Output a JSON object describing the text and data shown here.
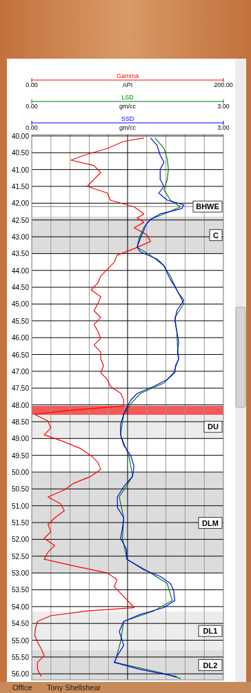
{
  "chart_data": {
    "type": "line",
    "orientation": "horizontal",
    "xlabel": "API",
    "x2label": "gm/cc",
    "legend": "top",
    "xlim": [
      0,
      200
    ],
    "xticks": [
      {
        "value": 0,
        "label": "0.00"
      },
      {
        "value": 20,
        "label": null
      },
      {
        "value": 40,
        "label": null
      },
      {
        "value": 60,
        "label": null
      },
      {
        "value": 80,
        "label": null
      },
      {
        "value": 120,
        "label": null
      },
      {
        "value": 140,
        "label": null
      },
      {
        "value": 160,
        "label": null
      },
      {
        "value": 180,
        "label": null
      },
      {
        "value": 200,
        "label": "200.00"
      }
    ],
    "x2lim": [
      0,
      3
    ],
    "x2ticks": [
      {
        "value": 0,
        "label": "0.00"
      },
      {
        "value": 3,
        "label": "3.00"
      }
    ],
    "ylim": [
      56.18,
      39.96
    ],
    "yticks": [
      {
        "value": 40,
        "label": "40.00"
      },
      {
        "value": 40.5,
        "label": "40.50"
      },
      {
        "value": 41,
        "label": "41.00"
      },
      {
        "value": 41.5,
        "label": "41.50"
      },
      {
        "value": 42,
        "label": "42.00"
      },
      {
        "value": 42.5,
        "label": "42.50"
      },
      {
        "value": 43,
        "label": "43.00"
      },
      {
        "value": 43.5,
        "label": "43.50"
      },
      {
        "value": 44,
        "label": "44.00"
      },
      {
        "value": 44.5,
        "label": "44.50"
      },
      {
        "value": 45,
        "label": "45.00"
      },
      {
        "value": 45.5,
        "label": "45.50"
      },
      {
        "value": 46,
        "label": "46.00"
      },
      {
        "value": 46.5,
        "label": "46.50"
      },
      {
        "value": 47,
        "label": "47.00"
      },
      {
        "value": 47.5,
        "label": "47.50"
      },
      {
        "value": 48,
        "label": "48.00"
      },
      {
        "value": 48.5,
        "label": "48.50"
      },
      {
        "value": 49,
        "label": "49.00"
      },
      {
        "value": 49.5,
        "label": "49.50"
      },
      {
        "value": 50,
        "label": "50.00"
      },
      {
        "value": 50.5,
        "label": "50.50"
      },
      {
        "value": 51,
        "label": "51.00"
      },
      {
        "value": 51.5,
        "label": "51.50"
      },
      {
        "value": 52,
        "label": "52.00"
      },
      {
        "value": 52.5,
        "label": "52.50"
      },
      {
        "value": 53,
        "label": "53.00"
      },
      {
        "value": 53.5,
        "label": "53.50"
      },
      {
        "value": 54,
        "label": "54.00"
      },
      {
        "value": 54.5,
        "label": "54.50"
      },
      {
        "value": 55,
        "label": "55.00"
      },
      {
        "value": 55.5,
        "label": "55.50"
      },
      {
        "value": 56,
        "label": "56.00"
      }
    ],
    "grid": true,
    "series": [
      {
        "name": "Gamma",
        "color": "#ff0000",
        "x": [
          40.06,
          40.16,
          40.37,
          40.57,
          40.72,
          40.88,
          41.09,
          41.29,
          41.5,
          41.7,
          41.91,
          42.11,
          42.32,
          42.44,
          42.57,
          42.73,
          42.94,
          43.14,
          43.35,
          43.55,
          43.76,
          43.96,
          44.17,
          44.37,
          44.58,
          44.78,
          44.99,
          45.2,
          45.4,
          45.61,
          45.81,
          46.02,
          46.22,
          46.43,
          46.63,
          46.84,
          47.04,
          47.25,
          47.45,
          47.66,
          47.86,
          48.03,
          48.17,
          48.28,
          48.48,
          48.69,
          48.89,
          49.1,
          49.3,
          49.51,
          49.71,
          49.92,
          50.12,
          50.33,
          50.53,
          50.74,
          50.94,
          51.15,
          51.36,
          51.56,
          51.77,
          51.97,
          52.18,
          52.38,
          52.59,
          52.79,
          53.0,
          53.2,
          53.41,
          53.61,
          53.82,
          54.03,
          54.13,
          54.27,
          54.44,
          54.64,
          54.85,
          55.05,
          55.26,
          55.46,
          55.66,
          55.87,
          56.08
        ],
        "values": [
          117,
          96,
          79,
          55,
          41,
          65,
          72,
          65,
          58,
          79,
          82,
          107,
          117,
          110,
          117,
          107,
          120,
          124,
          107,
          89,
          86,
          79,
          72,
          69,
          62,
          72,
          69,
          65,
          72,
          65,
          69,
          72,
          65,
          72,
          72,
          75,
          72,
          79,
          82,
          93,
          96,
          96,
          37,
          3,
          17,
          20,
          13,
          34,
          51,
          62,
          69,
          72,
          62,
          44,
          34,
          17,
          30,
          34,
          24,
          17,
          20,
          13,
          24,
          17,
          13,
          44,
          79,
          89,
          86,
          93,
          100,
          107,
          58,
          20,
          6,
          4,
          3,
          6,
          10,
          13,
          6,
          6,
          10
        ]
      },
      {
        "name": "LSD",
        "color": "#008000",
        "axis": "x2",
        "x": [
          40.06,
          40.37,
          40.68,
          40.99,
          41.29,
          41.6,
          41.91,
          42.11,
          42.32,
          42.48,
          42.73,
          43.04,
          43.31,
          43.55,
          43.86,
          44.17,
          44.58,
          44.99,
          45.4,
          45.81,
          46.22,
          46.63,
          47.04,
          47.35,
          47.66,
          47.97,
          48.28,
          48.89,
          49.51,
          50.12,
          50.74,
          51.36,
          51.97,
          52.59,
          53.0,
          53.31,
          53.82,
          54.13,
          54.44,
          55.05,
          55.66,
          55.97,
          56.14
        ],
        "values": [
          1.93,
          2.07,
          2.12,
          2.14,
          2.12,
          2.07,
          2.17,
          2.33,
          2.07,
          1.86,
          1.75,
          1.68,
          1.65,
          1.86,
          2.07,
          2.17,
          2.27,
          2.38,
          2.24,
          2.27,
          2.28,
          2.3,
          2.22,
          2.07,
          1.7,
          1.55,
          1.44,
          1.39,
          1.52,
          1.58,
          1.37,
          1.44,
          1.42,
          1.49,
          1.86,
          2.12,
          2.2,
          1.91,
          1.44,
          1.39,
          1.3,
          2.03,
          2.33
        ]
      },
      {
        "name": "SSD",
        "color": "#0000ff",
        "axis": "x2",
        "x": [
          40.06,
          40.27,
          40.57,
          40.78,
          40.99,
          41.29,
          41.5,
          41.7,
          41.91,
          42.05,
          42.16,
          42.32,
          42.48,
          42.63,
          42.83,
          43.04,
          43.31,
          43.45,
          43.66,
          43.86,
          44.07,
          44.27,
          44.48,
          44.68,
          44.89,
          45.2,
          45.5,
          45.81,
          46.12,
          46.43,
          46.63,
          46.84,
          47.04,
          47.25,
          47.45,
          47.66,
          47.86,
          48.07,
          48.28,
          48.58,
          48.89,
          49.2,
          49.51,
          49.82,
          50.12,
          50.43,
          50.74,
          51.05,
          51.36,
          51.66,
          51.97,
          52.28,
          52.59,
          52.9,
          53.1,
          53.31,
          53.51,
          53.82,
          54.03,
          54.23,
          54.44,
          54.74,
          55.15,
          55.46,
          55.66,
          55.87,
          56.08
        ],
        "values": [
          1.86,
          1.96,
          2.01,
          2.07,
          2.01,
          2.01,
          2.07,
          1.99,
          2.12,
          2.38,
          2.35,
          2.01,
          1.86,
          1.79,
          1.75,
          1.7,
          1.65,
          1.7,
          1.96,
          2.07,
          2.12,
          2.17,
          2.24,
          2.3,
          2.38,
          2.27,
          2.24,
          2.27,
          2.3,
          2.28,
          2.3,
          2.25,
          2.24,
          2.12,
          1.91,
          1.65,
          1.55,
          1.49,
          1.44,
          1.39,
          1.39,
          1.44,
          1.55,
          1.6,
          1.58,
          1.44,
          1.34,
          1.34,
          1.44,
          1.42,
          1.39,
          1.48,
          1.49,
          1.75,
          2.01,
          2.17,
          2.22,
          2.24,
          2.07,
          1.7,
          1.44,
          1.37,
          1.44,
          1.34,
          1.29,
          1.7,
          2.27
        ]
      }
    ],
    "bands": [
      {
        "axis": "y",
        "from": 42.4,
        "to": 43.5,
        "label": "C",
        "color": "#dcdcdc"
      },
      {
        "axis": "y",
        "from": 48.03,
        "to": 48.3,
        "label": null,
        "color": "#f25a5a"
      },
      {
        "axis": "y",
        "from": 48.3,
        "to": 49.0,
        "label": "DU",
        "color": "#ececec"
      },
      {
        "axis": "y",
        "from": 50.02,
        "to": 53.0,
        "label": "DLM",
        "color": "#dcdcdc"
      },
      {
        "axis": "y",
        "from": 54.15,
        "to": 55.3,
        "label": "DL1",
        "color": "#ececec"
      },
      {
        "axis": "y",
        "from": 55.3,
        "to": 56.18,
        "label": "DL2",
        "color": "#dcdcdc"
      }
    ],
    "ref_lines": [
      {
        "axis": "y",
        "value": 42.1,
        "label": "BHWE",
        "color": "#808080"
      },
      {
        "axis": "x",
        "value": 100,
        "label": null,
        "color": "#000000"
      }
    ],
    "annotations": [
      "Office",
      "Tony Shellshear"
    ]
  }
}
